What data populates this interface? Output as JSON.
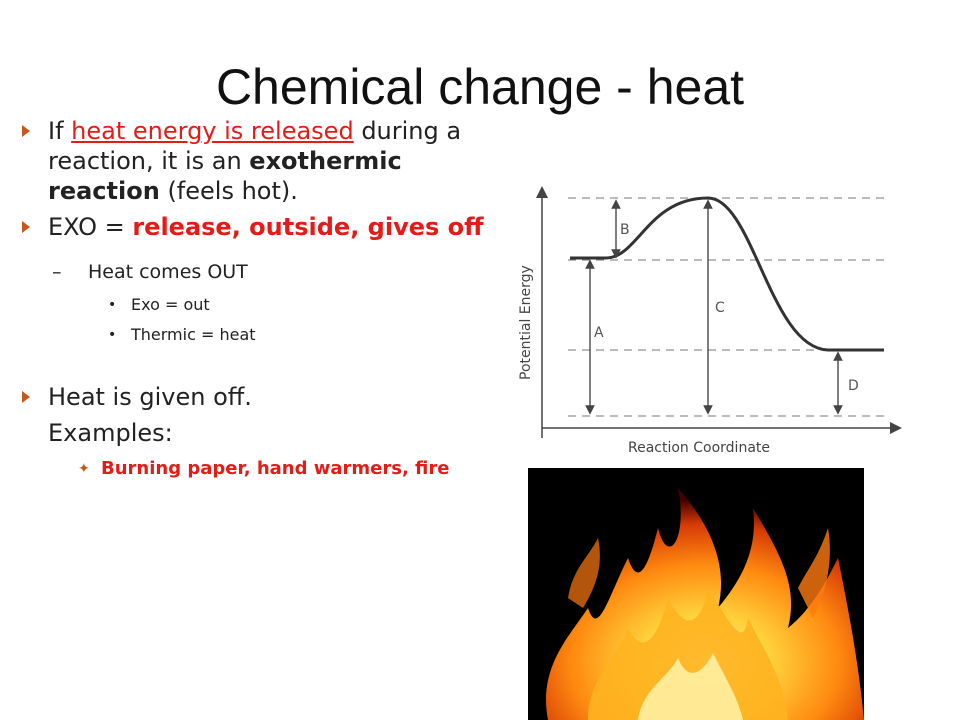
{
  "slide": {
    "title": "Chemical change - heat",
    "bullets": {
      "first": {
        "prefix": "If ",
        "highlight": "heat energy is released",
        "rest_a": " during a reaction, it is an ",
        "emphasis": "exothermic reaction",
        "rest_b": " (feels hot)."
      },
      "second": {
        "label": "EXO = ",
        "meaning": "release, outside, gives off"
      },
      "sub": "Heat comes OUT",
      "subsub": [
        "Exo = out",
        "Thermic = heat"
      ],
      "third": {
        "line1": "Heat is given off.",
        "line2": "Examples:"
      },
      "examples": "Burning paper, hand warmers, fire"
    }
  },
  "diagram": {
    "ylabel": "Potential Energy",
    "xlabel": "Reaction Coordinate",
    "labels": [
      "A",
      "B",
      "C",
      "D"
    ]
  },
  "photo": {
    "description_icon": "fire-photo"
  }
}
